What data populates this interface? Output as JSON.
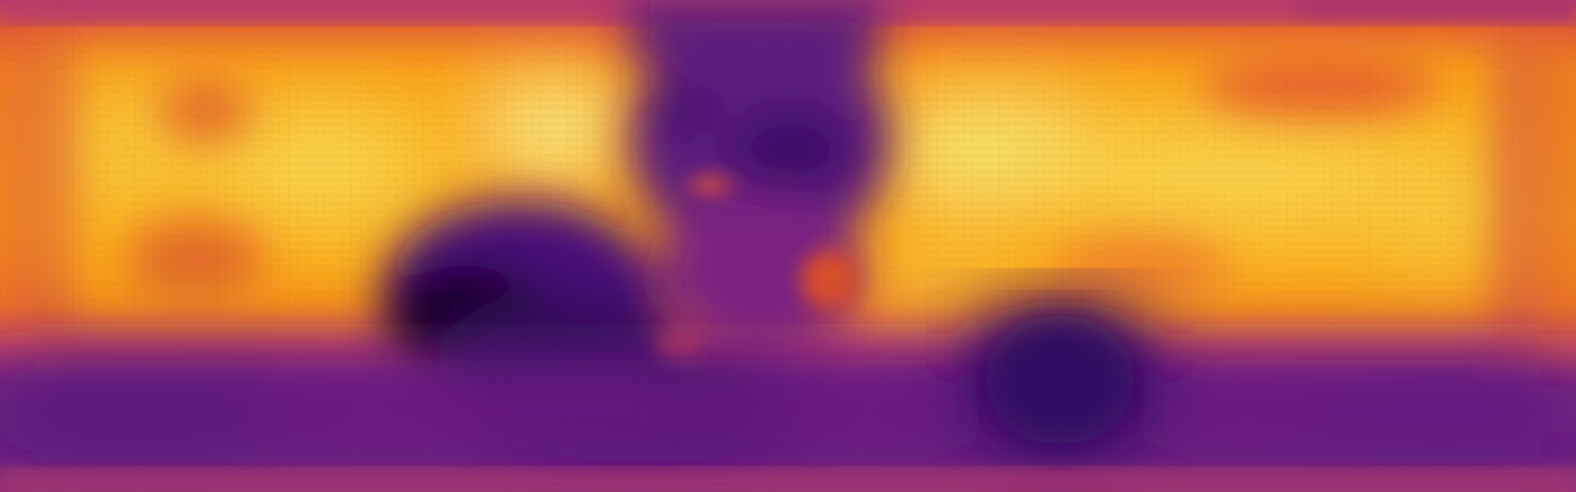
{
  "image": {
    "kind": "inferno-colormap-heatmap",
    "colormap": "inferno",
    "palette": {
      "black": "#000004",
      "deep_purple": "#3b0f70",
      "purple": "#6a1a7e",
      "magenta": "#9c2e7f",
      "red_orange": "#d4483a",
      "orange": "#f17b1b",
      "amber": "#fba40a",
      "yellow": "#f3e45f",
      "pale_yellow": "#f8f6a0"
    }
  }
}
